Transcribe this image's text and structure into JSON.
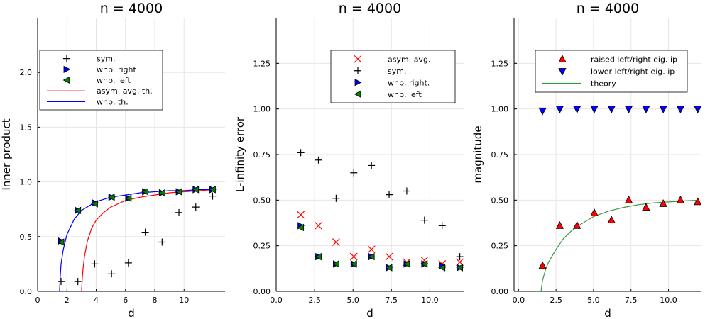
{
  "chart_data": [
    {
      "type": "scatter",
      "title": "n = 4000",
      "xlabel": "d",
      "ylabel": "Inner product",
      "xlim": [
        0,
        12.8
      ],
      "ylim": [
        0,
        2.5
      ],
      "xticks": [
        0,
        2,
        4,
        6,
        8,
        10
      ],
      "xtick_labels": [
        "0",
        "2",
        "4",
        "6",
        "8",
        "10"
      ],
      "yticks": [
        0,
        0.5,
        1.0,
        1.5,
        2.0
      ],
      "ytick_labels": [
        "0.0",
        "0.5",
        "1.0",
        "1.5",
        "2.0"
      ],
      "legend_position": "top-left",
      "series": [
        {
          "name": "sym.",
          "marker": "plus",
          "color": "#000000",
          "x": [
            1.6,
            2.75,
            3.9,
            5.05,
            6.2,
            7.35,
            8.5,
            9.65,
            10.8,
            11.95
          ],
          "y": [
            0.09,
            0.09,
            0.25,
            0.16,
            0.26,
            0.54,
            0.45,
            0.72,
            0.77,
            0.87
          ]
        },
        {
          "name": "wnb. right",
          "marker": "triangle-right",
          "color": "#0000ff",
          "x": [
            1.6,
            2.75,
            3.9,
            5.05,
            6.2,
            7.35,
            8.5,
            9.65,
            10.8,
            11.95
          ],
          "y": [
            0.46,
            0.74,
            0.81,
            0.86,
            0.85,
            0.91,
            0.9,
            0.91,
            0.93,
            0.93
          ]
        },
        {
          "name": "wnb. left",
          "marker": "triangle-left",
          "color": "#008000",
          "x": [
            1.6,
            2.75,
            3.9,
            5.05,
            6.2,
            7.35,
            8.5,
            9.65,
            10.8,
            11.95
          ],
          "y": [
            0.45,
            0.74,
            0.8,
            0.86,
            0.85,
            0.91,
            0.9,
            0.91,
            0.93,
            0.93
          ]
        },
        {
          "name": "asym. avg. th.",
          "marker": "line",
          "color": "#ff0000",
          "x": [
            0,
            3.0,
            3.05,
            3.1,
            3.2,
            3.4,
            3.7,
            4.0,
            4.5,
            5.0,
            6.0,
            7.0,
            8.0,
            9.0,
            10.0,
            11.0,
            12.0
          ],
          "y": [
            0,
            0,
            0.12,
            0.2,
            0.32,
            0.46,
            0.58,
            0.65,
            0.72,
            0.77,
            0.83,
            0.86,
            0.88,
            0.9,
            0.91,
            0.92,
            0.93
          ]
        },
        {
          "name": "wnb. th.",
          "marker": "line",
          "color": "#0000ff",
          "x": [
            0,
            1.5,
            1.55,
            1.6,
            1.75,
            2.0,
            2.5,
            3.0,
            4.0,
            5.0,
            6.0,
            7.0,
            8.0,
            9.0,
            10.0,
            11.0,
            12.0
          ],
          "y": [
            0,
            0,
            0.15,
            0.25,
            0.38,
            0.52,
            0.66,
            0.74,
            0.82,
            0.86,
            0.88,
            0.9,
            0.91,
            0.92,
            0.92,
            0.93,
            0.93
          ]
        }
      ]
    },
    {
      "type": "scatter",
      "title": "n = 4000",
      "xlabel": "d",
      "ylabel": "L-infinity error",
      "xlim": [
        0,
        12.2
      ],
      "ylim": [
        0,
        1.5
      ],
      "xticks": [
        0,
        2.5,
        5.0,
        7.5,
        10.0
      ],
      "xtick_labels": [
        "0.0",
        "2.5",
        "5.0",
        "7.5",
        "10.0"
      ],
      "yticks": [
        0,
        0.25,
        0.5,
        0.75,
        1.0,
        1.25
      ],
      "ytick_labels": [
        "0.00",
        "0.25",
        "0.50",
        "0.75",
        "1.00",
        "1.25"
      ],
      "legend_position": "top-right",
      "series": [
        {
          "name": "asym. avg.",
          "marker": "cross",
          "color": "#ff0000",
          "x": [
            1.6,
            2.75,
            3.9,
            5.05,
            6.2,
            7.35,
            8.5,
            9.65,
            10.8,
            11.95
          ],
          "y": [
            0.42,
            0.36,
            0.27,
            0.19,
            0.23,
            0.19,
            0.16,
            0.17,
            0.15,
            0.16
          ]
        },
        {
          "name": "sym.",
          "marker": "plus",
          "color": "#000000",
          "x": [
            1.6,
            2.75,
            3.9,
            5.05,
            6.2,
            7.35,
            8.5,
            9.65,
            10.8,
            11.95
          ],
          "y": [
            0.76,
            0.72,
            0.51,
            0.65,
            0.69,
            0.53,
            0.55,
            0.39,
            0.36,
            0.19
          ]
        },
        {
          "name": "wnb. right.",
          "marker": "triangle-right",
          "color": "#0000ff",
          "x": [
            1.6,
            2.75,
            3.9,
            5.05,
            6.2,
            7.35,
            8.5,
            9.65,
            10.8,
            11.95
          ],
          "y": [
            0.36,
            0.19,
            0.15,
            0.15,
            0.19,
            0.13,
            0.15,
            0.15,
            0.14,
            0.13
          ]
        },
        {
          "name": "wnb. left",
          "marker": "triangle-left",
          "color": "#008000",
          "x": [
            1.6,
            2.75,
            3.9,
            5.05,
            6.2,
            7.35,
            8.5,
            9.65,
            10.8,
            11.95
          ],
          "y": [
            0.35,
            0.19,
            0.15,
            0.15,
            0.19,
            0.13,
            0.15,
            0.15,
            0.13,
            0.13
          ]
        }
      ]
    },
    {
      "type": "scatter",
      "title": "n = 4000",
      "xlabel": "d",
      "ylabel": "magnitude",
      "xlim": [
        -0.3,
        12.2
      ],
      "ylim": [
        0,
        1.5
      ],
      "xticks": [
        0,
        2.5,
        5.0,
        7.5,
        10.0
      ],
      "xtick_labels": [
        "0.0",
        "2.5",
        "5.0",
        "7.5",
        "10.0"
      ],
      "yticks": [
        0,
        0.25,
        0.5,
        0.75,
        1.0,
        1.25
      ],
      "ytick_labels": [
        "0.00",
        "0.25",
        "0.50",
        "0.75",
        "1.00",
        "1.25"
      ],
      "legend_position": "top-right",
      "series": [
        {
          "name": "raised left/right eig. ip",
          "marker": "triangle-up",
          "color": "#ff0000",
          "x": [
            1.6,
            2.75,
            3.9,
            5.05,
            6.2,
            7.35,
            8.5,
            9.65,
            10.8,
            11.95
          ],
          "y": [
            0.14,
            0.36,
            0.36,
            0.43,
            0.39,
            0.5,
            0.46,
            0.48,
            0.5,
            0.49
          ]
        },
        {
          "name": "lower left/right eig. ip",
          "marker": "triangle-down",
          "color": "#0000ff",
          "x": [
            1.6,
            2.75,
            3.9,
            5.05,
            6.2,
            7.35,
            8.5,
            9.65,
            10.8,
            11.95
          ],
          "y": [
            0.99,
            1.0,
            1.0,
            1.0,
            1.0,
            1.0,
            1.0,
            1.0,
            1.0,
            1.0
          ]
        },
        {
          "name": "theory",
          "marker": "line",
          "color": "#3a9a3a",
          "x": [
            1.5,
            1.6,
            1.8,
            2.0,
            2.5,
            3.0,
            3.5,
            4.0,
            5.0,
            6.0,
            7.0,
            8.0,
            9.0,
            10.0,
            11.0,
            12.0
          ],
          "y": [
            0,
            0.06,
            0.12,
            0.16,
            0.23,
            0.29,
            0.33,
            0.36,
            0.41,
            0.44,
            0.46,
            0.475,
            0.485,
            0.49,
            0.495,
            0.5
          ]
        }
      ]
    }
  ]
}
